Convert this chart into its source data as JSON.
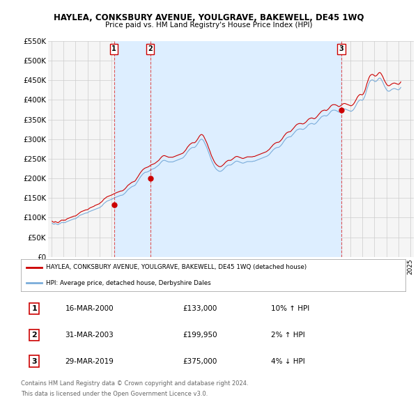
{
  "title": "HAYLEA, CONKSBURY AVENUE, YOULGRAVE, BAKEWELL, DE45 1WQ",
  "subtitle": "Price paid vs. HM Land Registry's House Price Index (HPI)",
  "red_label": "HAYLEA, CONKSBURY AVENUE, YOULGRAVE, BAKEWELL, DE45 1WQ (detached house)",
  "blue_label": "HPI: Average price, detached house, Derbyshire Dales",
  "footer1": "Contains HM Land Registry data © Crown copyright and database right 2024.",
  "footer2": "This data is licensed under the Open Government Licence v3.0.",
  "transactions": [
    {
      "num": 1,
      "date": "16-MAR-2000",
      "price": "£133,000",
      "hpi": "10% ↑ HPI",
      "year": 2000.21
    },
    {
      "num": 2,
      "date": "31-MAR-2003",
      "price": "£199,950",
      "hpi": "2% ↑ HPI",
      "year": 2003.25
    },
    {
      "num": 3,
      "date": "29-MAR-2019",
      "price": "£375,000",
      "hpi": "4% ↓ HPI",
      "year": 2019.24
    }
  ],
  "transaction_values": [
    133000,
    199950,
    375000
  ],
  "hpi_monthly": {
    "years": [
      1995.04,
      1995.12,
      1995.21,
      1995.29,
      1995.37,
      1995.46,
      1995.54,
      1995.62,
      1995.71,
      1995.79,
      1995.87,
      1995.96,
      1996.04,
      1996.12,
      1996.21,
      1996.29,
      1996.37,
      1996.46,
      1996.54,
      1996.62,
      1996.71,
      1996.79,
      1996.87,
      1996.96,
      1997.04,
      1997.12,
      1997.21,
      1997.29,
      1997.37,
      1997.46,
      1997.54,
      1997.62,
      1997.71,
      1997.79,
      1997.87,
      1997.96,
      1998.04,
      1998.12,
      1998.21,
      1998.29,
      1998.37,
      1998.46,
      1998.54,
      1998.62,
      1998.71,
      1998.79,
      1998.87,
      1998.96,
      1999.04,
      1999.12,
      1999.21,
      1999.29,
      1999.37,
      1999.46,
      1999.54,
      1999.62,
      1999.71,
      1999.79,
      1999.87,
      1999.96,
      2000.04,
      2000.12,
      2000.21,
      2000.29,
      2000.37,
      2000.46,
      2000.54,
      2000.62,
      2000.71,
      2000.79,
      2000.87,
      2000.96,
      2001.04,
      2001.12,
      2001.21,
      2001.29,
      2001.37,
      2001.46,
      2001.54,
      2001.62,
      2001.71,
      2001.79,
      2001.87,
      2001.96,
      2002.04,
      2002.12,
      2002.21,
      2002.29,
      2002.37,
      2002.46,
      2002.54,
      2002.62,
      2002.71,
      2002.79,
      2002.87,
      2002.96,
      2003.04,
      2003.12,
      2003.21,
      2003.29,
      2003.37,
      2003.46,
      2003.54,
      2003.62,
      2003.71,
      2003.79,
      2003.87,
      2003.96,
      2004.04,
      2004.12,
      2004.21,
      2004.29,
      2004.37,
      2004.46,
      2004.54,
      2004.62,
      2004.71,
      2004.79,
      2004.87,
      2004.96,
      2005.04,
      2005.12,
      2005.21,
      2005.29,
      2005.37,
      2005.46,
      2005.54,
      2005.62,
      2005.71,
      2005.79,
      2005.87,
      2005.96,
      2006.04,
      2006.12,
      2006.21,
      2006.29,
      2006.37,
      2006.46,
      2006.54,
      2006.62,
      2006.71,
      2006.79,
      2006.87,
      2006.96,
      2007.04,
      2007.12,
      2007.21,
      2007.29,
      2007.37,
      2007.46,
      2007.54,
      2007.62,
      2007.71,
      2007.79,
      2007.87,
      2007.96,
      2008.04,
      2008.12,
      2008.21,
      2008.29,
      2008.37,
      2008.46,
      2008.54,
      2008.62,
      2008.71,
      2008.79,
      2008.87,
      2008.96,
      2009.04,
      2009.12,
      2009.21,
      2009.29,
      2009.37,
      2009.46,
      2009.54,
      2009.62,
      2009.71,
      2009.79,
      2009.87,
      2009.96,
      2010.04,
      2010.12,
      2010.21,
      2010.29,
      2010.37,
      2010.46,
      2010.54,
      2010.62,
      2010.71,
      2010.79,
      2010.87,
      2010.96,
      2011.04,
      2011.12,
      2011.21,
      2011.29,
      2011.37,
      2011.46,
      2011.54,
      2011.62,
      2011.71,
      2011.79,
      2011.87,
      2011.96,
      2012.04,
      2012.12,
      2012.21,
      2012.29,
      2012.37,
      2012.46,
      2012.54,
      2012.62,
      2012.71,
      2012.79,
      2012.87,
      2012.96,
      2013.04,
      2013.12,
      2013.21,
      2013.29,
      2013.37,
      2013.46,
      2013.54,
      2013.62,
      2013.71,
      2013.79,
      2013.87,
      2013.96,
      2014.04,
      2014.12,
      2014.21,
      2014.29,
      2014.37,
      2014.46,
      2014.54,
      2014.62,
      2014.71,
      2014.79,
      2014.87,
      2014.96,
      2015.04,
      2015.12,
      2015.21,
      2015.29,
      2015.37,
      2015.46,
      2015.54,
      2015.62,
      2015.71,
      2015.79,
      2015.87,
      2015.96,
      2016.04,
      2016.12,
      2016.21,
      2016.29,
      2016.37,
      2016.46,
      2016.54,
      2016.62,
      2016.71,
      2016.79,
      2016.87,
      2016.96,
      2017.04,
      2017.12,
      2017.21,
      2017.29,
      2017.37,
      2017.46,
      2017.54,
      2017.62,
      2017.71,
      2017.79,
      2017.87,
      2017.96,
      2018.04,
      2018.12,
      2018.21,
      2018.29,
      2018.37,
      2018.46,
      2018.54,
      2018.62,
      2018.71,
      2018.79,
      2018.87,
      2018.96,
      2019.04,
      2019.12,
      2019.21,
      2019.29,
      2019.37,
      2019.46,
      2019.54,
      2019.62,
      2019.71,
      2019.79,
      2019.87,
      2019.96,
      2020.04,
      2020.12,
      2020.21,
      2020.29,
      2020.37,
      2020.46,
      2020.54,
      2020.62,
      2020.71,
      2020.79,
      2020.87,
      2020.96,
      2021.04,
      2021.12,
      2021.21,
      2021.29,
      2021.37,
      2021.46,
      2021.54,
      2021.62,
      2021.71,
      2021.79,
      2021.87,
      2021.96,
      2022.04,
      2022.12,
      2022.21,
      2022.29,
      2022.37,
      2022.46,
      2022.54,
      2022.62,
      2022.71,
      2022.79,
      2022.87,
      2022.96,
      2023.04,
      2023.12,
      2023.21,
      2023.29,
      2023.37,
      2023.46,
      2023.54,
      2023.62,
      2023.71,
      2023.79,
      2023.87,
      2023.96,
      2024.04,
      2024.12,
      2024.21
    ],
    "hpi_vals": [
      86000,
      84000,
      83000,
      85000,
      84000,
      83000,
      82000,
      84000,
      85000,
      87000,
      88000,
      87000,
      88000,
      87000,
      89000,
      90000,
      91000,
      92000,
      93000,
      94000,
      95000,
      96000,
      97000,
      97000,
      98000,
      100000,
      102000,
      104000,
      106000,
      107000,
      108000,
      109000,
      110000,
      111000,
      112000,
      112000,
      113000,
      115000,
      116000,
      117000,
      118000,
      119000,
      120000,
      121000,
      122000,
      123000,
      124000,
      125000,
      126000,
      128000,
      130000,
      133000,
      136000,
      138000,
      140000,
      142000,
      143000,
      144000,
      145000,
      146000,
      147000,
      148000,
      150000,
      151000,
      152000,
      153000,
      154000,
      155000,
      156000,
      157000,
      157000,
      158000,
      160000,
      162000,
      165000,
      168000,
      171000,
      173000,
      175000,
      177000,
      179000,
      180000,
      181000,
      182000,
      185000,
      189000,
      193000,
      197000,
      201000,
      205000,
      208000,
      211000,
      213000,
      215000,
      216000,
      216000,
      217000,
      218000,
      220000,
      222000,
      223000,
      224000,
      225000,
      226000,
      228000,
      230000,
      232000,
      234000,
      237000,
      240000,
      243000,
      245000,
      246000,
      246000,
      245000,
      244000,
      243000,
      242000,
      242000,
      242000,
      242000,
      242000,
      243000,
      244000,
      245000,
      246000,
      247000,
      248000,
      249000,
      250000,
      251000,
      252000,
      254000,
      257000,
      260000,
      264000,
      268000,
      271000,
      274000,
      276000,
      278000,
      279000,
      279000,
      279000,
      281000,
      284000,
      288000,
      292000,
      296000,
      299000,
      300000,
      299000,
      296000,
      291000,
      286000,
      280000,
      274000,
      267000,
      260000,
      253000,
      246000,
      240000,
      235000,
      230000,
      226000,
      223000,
      221000,
      219000,
      218000,
      218000,
      219000,
      221000,
      223000,
      226000,
      229000,
      231000,
      233000,
      234000,
      234000,
      234000,
      235000,
      237000,
      239000,
      241000,
      243000,
      244000,
      244000,
      243000,
      242000,
      241000,
      240000,
      239000,
      239000,
      240000,
      241000,
      242000,
      243000,
      243000,
      243000,
      243000,
      243000,
      243000,
      244000,
      244000,
      245000,
      246000,
      247000,
      248000,
      249000,
      250000,
      251000,
      252000,
      253000,
      254000,
      255000,
      256000,
      257000,
      259000,
      261000,
      264000,
      267000,
      270000,
      273000,
      275000,
      277000,
      278000,
      279000,
      279000,
      280000,
      282000,
      285000,
      288000,
      292000,
      296000,
      299000,
      302000,
      304000,
      305000,
      306000,
      306000,
      307000,
      310000,
      313000,
      316000,
      319000,
      322000,
      324000,
      325000,
      326000,
      326000,
      326000,
      325000,
      325000,
      326000,
      328000,
      330000,
      333000,
      336000,
      338000,
      339000,
      340000,
      340000,
      339000,
      338000,
      339000,
      341000,
      344000,
      347000,
      350000,
      353000,
      356000,
      358000,
      359000,
      360000,
      360000,
      359000,
      360000,
      362000,
      365000,
      368000,
      371000,
      373000,
      374000,
      374000,
      374000,
      373000,
      372000,
      370000,
      369000,
      370000,
      372000,
      374000,
      376000,
      377000,
      377000,
      376000,
      375000,
      374000,
      373000,
      372000,
      371000,
      372000,
      374000,
      377000,
      381000,
      386000,
      391000,
      395000,
      398000,
      400000,
      400000,
      399000,
      400000,
      404000,
      410000,
      418000,
      427000,
      435000,
      442000,
      447000,
      450000,
      451000,
      451000,
      449000,
      447000,
      447000,
      449000,
      452000,
      455000,
      456000,
      454000,
      450000,
      445000,
      439000,
      434000,
      429000,
      425000,
      423000,
      422000,
      423000,
      425000,
      427000,
      428000,
      429000,
      429000,
      428000,
      427000,
      426000,
      426000,
      428000,
      432000
    ],
    "red_vals": [
      91000,
      89000,
      88000,
      90000,
      89000,
      88000,
      87000,
      89000,
      91000,
      93000,
      94000,
      93000,
      94000,
      93000,
      95000,
      97000,
      98000,
      99000,
      100000,
      101000,
      102000,
      103000,
      104000,
      104000,
      105000,
      107000,
      109000,
      111000,
      113000,
      115000,
      116000,
      117000,
      118000,
      119000,
      120000,
      120000,
      121000,
      123000,
      125000,
      126000,
      127000,
      128000,
      129000,
      131000,
      132000,
      133000,
      134000,
      135000,
      137000,
      139000,
      141000,
      144000,
      147000,
      149000,
      151000,
      153000,
      154000,
      155000,
      156000,
      157000,
      158000,
      159000,
      161000,
      162000,
      163000,
      164000,
      165000,
      166000,
      167000,
      168000,
      168000,
      169000,
      171000,
      173000,
      176000,
      179000,
      182000,
      184000,
      186000,
      188000,
      190000,
      191000,
      192000,
      193000,
      196000,
      200000,
      204000,
      208000,
      212000,
      216000,
      219000,
      222000,
      224000,
      226000,
      227000,
      228000,
      229000,
      230000,
      232000,
      234000,
      235000,
      236000,
      237000,
      238000,
      240000,
      242000,
      244000,
      246000,
      249000,
      252000,
      255000,
      257000,
      258000,
      258000,
      257000,
      256000,
      255000,
      254000,
      254000,
      254000,
      254000,
      254000,
      255000,
      256000,
      257000,
      258000,
      259000,
      260000,
      261000,
      262000,
      263000,
      264000,
      266000,
      269000,
      272000,
      276000,
      280000,
      283000,
      286000,
      288000,
      290000,
      291000,
      291000,
      291000,
      293000,
      296000,
      300000,
      304000,
      308000,
      311000,
      312000,
      311000,
      308000,
      303000,
      298000,
      292000,
      286000,
      279000,
      272000,
      265000,
      258000,
      252000,
      247000,
      242000,
      238000,
      235000,
      233000,
      231000,
      230000,
      230000,
      231000,
      233000,
      235000,
      238000,
      241000,
      243000,
      245000,
      246000,
      246000,
      246000,
      247000,
      249000,
      251000,
      253000,
      255000,
      256000,
      256000,
      255000,
      254000,
      253000,
      252000,
      251000,
      251000,
      252000,
      253000,
      254000,
      255000,
      255000,
      255000,
      255000,
      255000,
      255000,
      256000,
      256000,
      257000,
      258000,
      259000,
      260000,
      261000,
      262000,
      263000,
      264000,
      265000,
      266000,
      267000,
      268000,
      270000,
      272000,
      274000,
      277000,
      280000,
      283000,
      286000,
      288000,
      290000,
      291000,
      292000,
      292000,
      293000,
      295000,
      298000,
      301000,
      305000,
      309000,
      312000,
      315000,
      317000,
      318000,
      319000,
      319000,
      321000,
      324000,
      327000,
      330000,
      333000,
      336000,
      338000,
      339000,
      340000,
      340000,
      340000,
      339000,
      339000,
      340000,
      342000,
      344000,
      347000,
      350000,
      352000,
      353000,
      354000,
      354000,
      353000,
      352000,
      353000,
      355000,
      358000,
      361000,
      364000,
      367000,
      370000,
      372000,
      373000,
      374000,
      374000,
      373000,
      374000,
      376000,
      379000,
      382000,
      385000,
      387000,
      388000,
      388000,
      388000,
      387000,
      386000,
      384000,
      383000,
      384000,
      386000,
      388000,
      390000,
      391000,
      391000,
      390000,
      389000,
      388000,
      387000,
      386000,
      385000,
      386000,
      388000,
      391000,
      395000,
      400000,
      405000,
      409000,
      412000,
      414000,
      414000,
      413000,
      414000,
      418000,
      424000,
      432000,
      441000,
      449000,
      456000,
      461000,
      464000,
      465000,
      465000,
      463000,
      461000,
      461000,
      463000,
      466000,
      469000,
      470000,
      468000,
      464000,
      459000,
      453000,
      448000,
      443000,
      439000,
      437000,
      436000,
      437000,
      439000,
      441000,
      442000,
      443000,
      443000,
      442000,
      441000,
      440000,
      440000,
      442000,
      446000
    ]
  },
  "ylim": [
    0,
    550000
  ],
  "yticks": [
    0,
    50000,
    100000,
    150000,
    200000,
    250000,
    300000,
    350000,
    400000,
    450000,
    500000,
    550000
  ],
  "ytick_labels": [
    "£0",
    "£50K",
    "£100K",
    "£150K",
    "£200K",
    "£250K",
    "£300K",
    "£350K",
    "£400K",
    "£450K",
    "£500K",
    "£550K"
  ],
  "xlim": [
    1994.7,
    2025.3
  ],
  "xtick_years": [
    1995,
    1996,
    1997,
    1998,
    1999,
    2000,
    2001,
    2002,
    2003,
    2004,
    2005,
    2006,
    2007,
    2008,
    2009,
    2010,
    2011,
    2012,
    2013,
    2014,
    2015,
    2016,
    2017,
    2018,
    2019,
    2020,
    2021,
    2022,
    2023,
    2024,
    2025
  ],
  "red_color": "#cc0000",
  "blue_color": "#7aacda",
  "band_fill": "#ddeeff",
  "vline_color": "#dd4444",
  "grid_color": "#cccccc",
  "background_color": "#ffffff",
  "plot_bg": "#f5f5f5"
}
